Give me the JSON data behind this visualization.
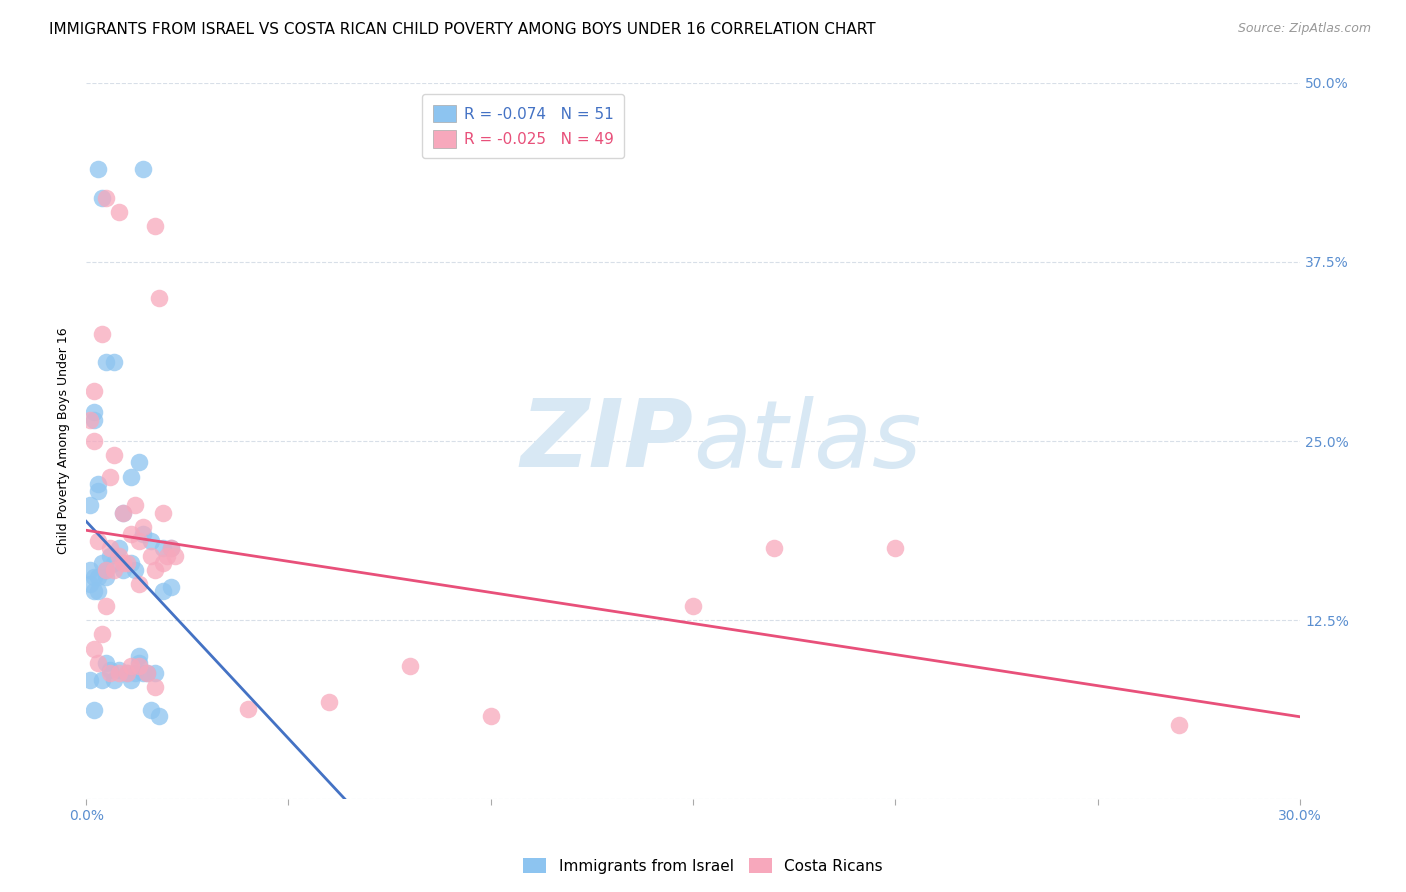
{
  "title": "IMMIGRANTS FROM ISRAEL VS COSTA RICAN CHILD POVERTY AMONG BOYS UNDER 16 CORRELATION CHART",
  "source": "Source: ZipAtlas.com",
  "ylabel": "Child Poverty Among Boys Under 16",
  "xlim": [
    0.0,
    0.3
  ],
  "ylim": [
    0.0,
    0.5
  ],
  "yticks": [
    0.0,
    0.125,
    0.25,
    0.375,
    0.5
  ],
  "ytick_labels": [
    "",
    "12.5%",
    "25.0%",
    "37.5%",
    "50.0%"
  ],
  "xticks": [
    0.0,
    0.05,
    0.1,
    0.15,
    0.2,
    0.25,
    0.3
  ],
  "xtick_labels": [
    "0.0%",
    "",
    "",
    "",
    "",
    "",
    "30.0%"
  ],
  "blue_R": -0.074,
  "blue_N": 51,
  "pink_R": -0.025,
  "pink_N": 49,
  "blue_color": "#8DC4F0",
  "pink_color": "#F7A8BC",
  "blue_line_color": "#4472C4",
  "pink_line_color": "#E8507A",
  "blue_scatter_x": [
    0.003,
    0.004,
    0.014,
    0.005,
    0.007,
    0.002,
    0.002,
    0.001,
    0.003,
    0.003,
    0.011,
    0.013,
    0.009,
    0.008,
    0.005,
    0.016,
    0.019,
    0.021,
    0.012,
    0.014,
    0.006,
    0.003,
    0.002,
    0.001,
    0.007,
    0.005,
    0.004,
    0.009,
    0.011,
    0.001,
    0.002,
    0.003,
    0.005,
    0.008,
    0.006,
    0.013,
    0.015,
    0.017,
    0.01,
    0.001,
    0.004,
    0.007,
    0.002,
    0.021,
    0.019,
    0.013,
    0.012,
    0.014,
    0.011,
    0.016,
    0.018
  ],
  "blue_scatter_y": [
    0.44,
    0.42,
    0.44,
    0.305,
    0.305,
    0.27,
    0.265,
    0.205,
    0.215,
    0.22,
    0.225,
    0.235,
    0.2,
    0.175,
    0.155,
    0.18,
    0.175,
    0.175,
    0.16,
    0.185,
    0.17,
    0.155,
    0.155,
    0.15,
    0.165,
    0.16,
    0.165,
    0.16,
    0.165,
    0.16,
    0.145,
    0.145,
    0.095,
    0.09,
    0.09,
    0.1,
    0.088,
    0.088,
    0.088,
    0.083,
    0.083,
    0.083,
    0.062,
    0.148,
    0.145,
    0.095,
    0.088,
    0.088,
    0.083,
    0.062,
    0.058
  ],
  "pink_scatter_x": [
    0.005,
    0.008,
    0.017,
    0.018,
    0.004,
    0.002,
    0.001,
    0.002,
    0.007,
    0.006,
    0.009,
    0.011,
    0.013,
    0.01,
    0.005,
    0.003,
    0.006,
    0.008,
    0.012,
    0.014,
    0.016,
    0.019,
    0.021,
    0.02,
    0.017,
    0.013,
    0.009,
    0.007,
    0.005,
    0.004,
    0.002,
    0.003,
    0.006,
    0.008,
    0.01,
    0.011,
    0.013,
    0.015,
    0.017,
    0.019,
    0.2,
    0.27,
    0.15,
    0.17,
    0.1,
    0.08,
    0.06,
    0.04,
    0.022
  ],
  "pink_scatter_y": [
    0.42,
    0.41,
    0.4,
    0.35,
    0.325,
    0.285,
    0.265,
    0.25,
    0.24,
    0.225,
    0.2,
    0.185,
    0.18,
    0.165,
    0.16,
    0.18,
    0.175,
    0.17,
    0.205,
    0.19,
    0.17,
    0.2,
    0.175,
    0.17,
    0.16,
    0.15,
    0.165,
    0.16,
    0.135,
    0.115,
    0.105,
    0.095,
    0.088,
    0.088,
    0.088,
    0.093,
    0.093,
    0.088,
    0.078,
    0.165,
    0.175,
    0.052,
    0.135,
    0.175,
    0.058,
    0.093,
    0.068,
    0.063,
    0.17
  ],
  "watermark_zip": "ZIP",
  "watermark_atlas": "atlas",
  "watermark_color": "#d8e8f4",
  "legend_label_blue": "Immigrants from Israel",
  "legend_label_pink": "Costa Ricans",
  "axis_color": "#5B8FD0",
  "grid_color": "#d8dfe8",
  "title_fontsize": 11,
  "axis_label_fontsize": 9,
  "tick_fontsize": 10,
  "legend_fontsize": 11
}
